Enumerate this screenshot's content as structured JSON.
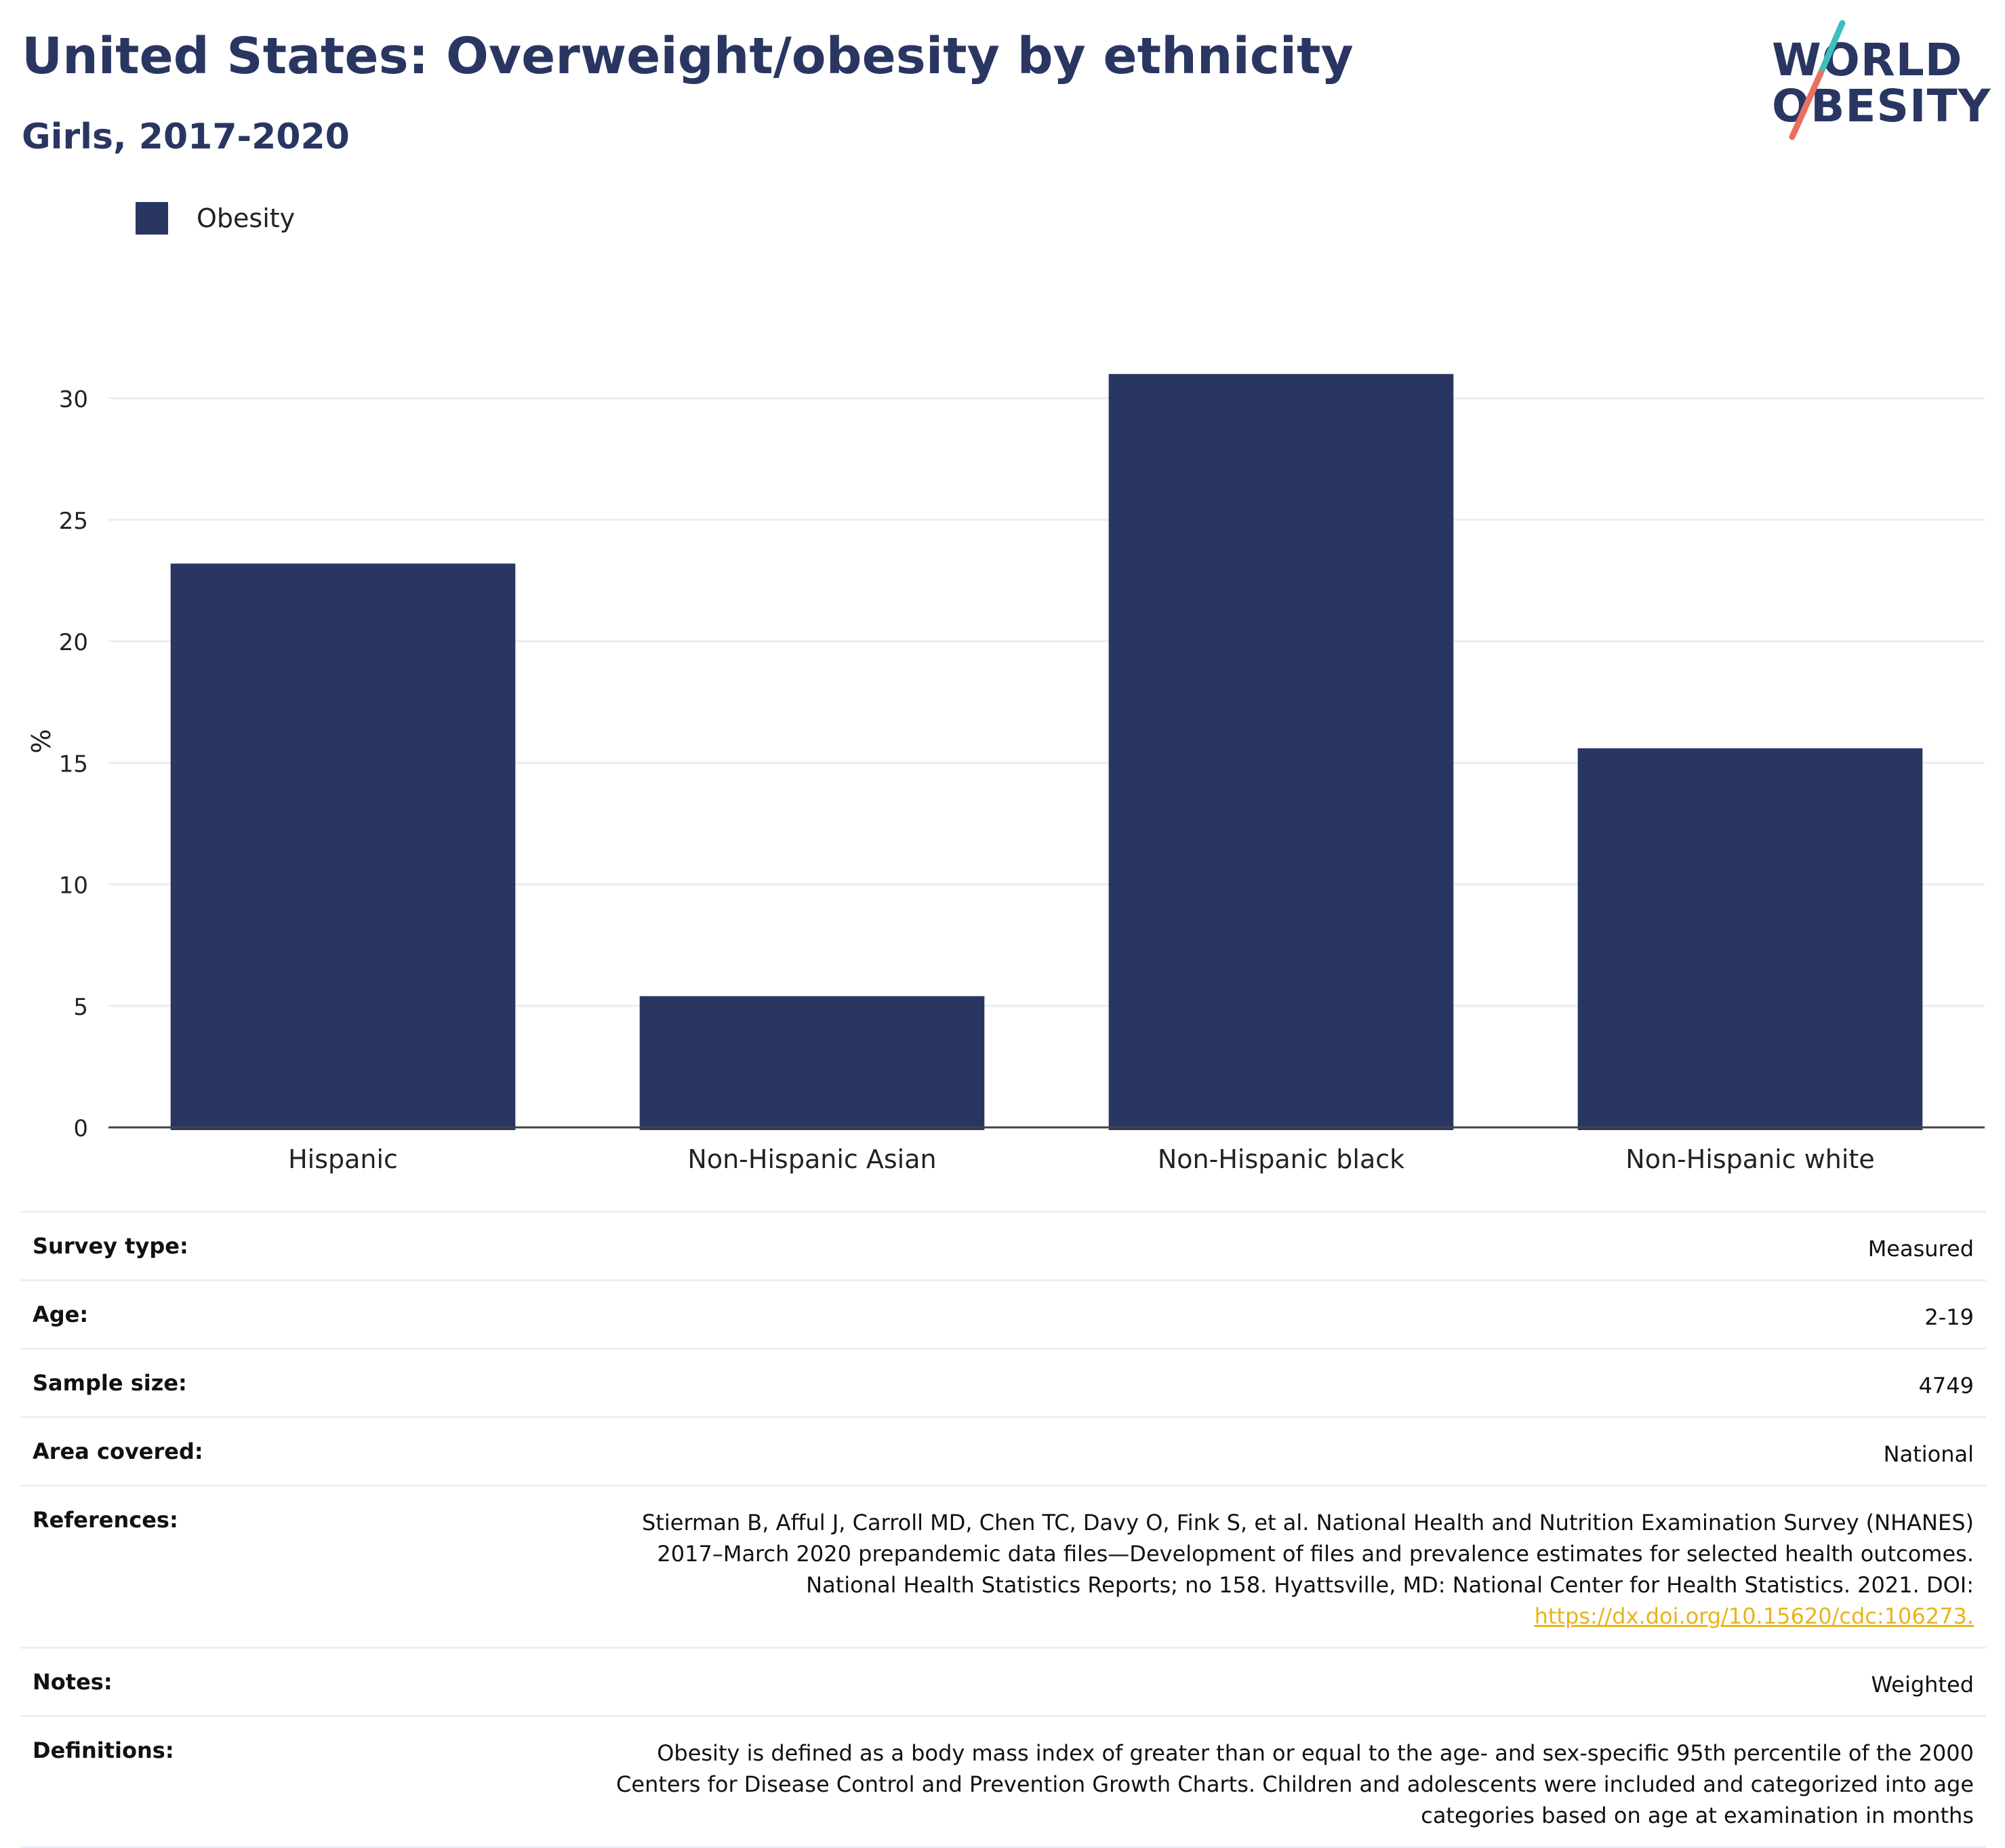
{
  "header": {
    "title": "United States: Overweight/obesity by ethnicity",
    "subtitle": "Girls, 2017-2020"
  },
  "logo": {
    "line1": "WORLD",
    "line2": "OBESITY",
    "colors": {
      "text": "#2a3662",
      "slash_teal": "#3bbfbf",
      "slash_coral": "#e8705f"
    }
  },
  "legend": {
    "items": [
      {
        "label": "Obesity",
        "color": "#2a3662"
      }
    ]
  },
  "chart_data": {
    "type": "bar",
    "categories": [
      "Hispanic",
      "Non-Hispanic Asian",
      "Non-Hispanic black",
      "Non-Hispanic white"
    ],
    "series": [
      {
        "name": "Obesity",
        "values": [
          23.2,
          5.4,
          31.0,
          15.6
        ],
        "color": "#2a3662"
      }
    ],
    "ylabel": "%",
    "ylim": [
      0,
      33
    ],
    "yticks": [
      0,
      5,
      10,
      15,
      20,
      25,
      30
    ],
    "grid": true,
    "legend_position": "top-left"
  },
  "info": {
    "survey_type": {
      "label": "Survey type:",
      "value": "Measured"
    },
    "age": {
      "label": "Age:",
      "value": "2-19"
    },
    "sample_size": {
      "label": "Sample size:",
      "value": "4749"
    },
    "area_covered": {
      "label": "Area covered:",
      "value": "National"
    },
    "references": {
      "label": "References:",
      "value": "Stierman B, Afful J, Carroll MD, Chen TC, Davy O, Fink S, et al. National Health and Nutrition Examination Survey (NHANES) 2017–March 2020 prepandemic data files—Development of files and prevalence estimates for selected health outcomes. National Health Statistics Reports; no 158. Hyattsville, MD: National Center for Health Statistics. 2021. DOI:",
      "link": "https://dx.doi.org/10.15620/cdc:106273."
    },
    "notes": {
      "label": "Notes:",
      "value": "Weighted"
    },
    "definitions": {
      "label": "Definitions:",
      "value": "Obesity is defined as a body mass index of greater than or equal to the age- and sex-specific 95th percentile of the 2000 Centers for Disease Control and Prevention Growth Charts. Children and adolescents were included and categorized into age categories based on age at examination in months"
    }
  }
}
